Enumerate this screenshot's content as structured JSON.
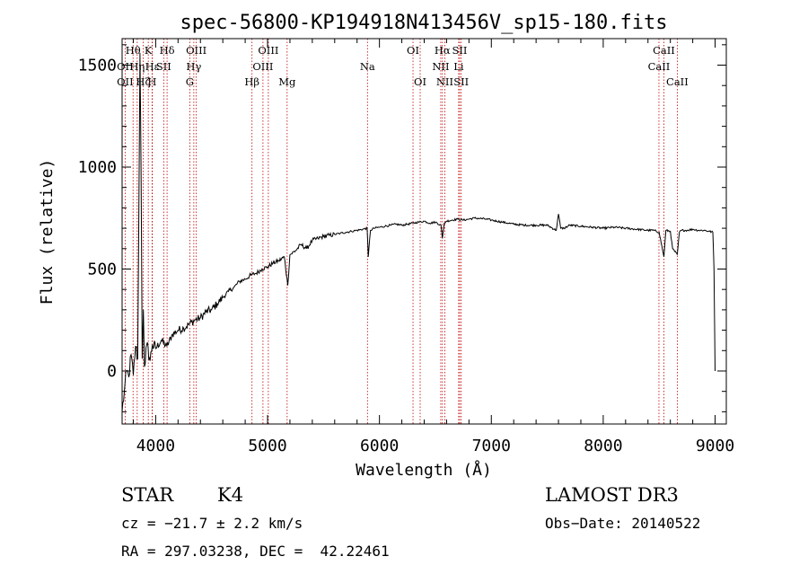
{
  "chart_data": {
    "type": "line",
    "title": "spec-56800-KP194918N413456V_sp15-180.fits",
    "xlabel": "Wavelength (Å)",
    "ylabel": "Flux (relative)",
    "xlim": [
      3700,
      9100
    ],
    "ylim": [
      -260,
      1630
    ],
    "xticks": [
      {
        "value": 4000,
        "label": "4000"
      },
      {
        "value": 5000,
        "label": "5000"
      },
      {
        "value": 6000,
        "label": "6000"
      },
      {
        "value": 7000,
        "label": "7000"
      },
      {
        "value": 8000,
        "label": "8000"
      },
      {
        "value": 9000,
        "label": "9000"
      }
    ],
    "yticks": [
      {
        "value": 0,
        "label": "0"
      },
      {
        "value": 500,
        "label": "500"
      },
      {
        "value": 1000,
        "label": "1000"
      },
      {
        "value": 1500,
        "label": "1500"
      }
    ],
    "series": [
      {
        "name": "spectrum",
        "x": [
          3700,
          3720,
          3740,
          3760,
          3780,
          3800,
          3820,
          3840,
          3860,
          3870,
          3880,
          3890,
          3900,
          3920,
          3950,
          3970,
          4000,
          4050,
          4100,
          4150,
          4200,
          4250,
          4300,
          4350,
          4400,
          4450,
          4500,
          4550,
          4600,
          4650,
          4700,
          4750,
          4800,
          4850,
          4900,
          4950,
          5000,
          5050,
          5100,
          5150,
          5180,
          5200,
          5250,
          5300,
          5350,
          5400,
          5450,
          5500,
          5550,
          5600,
          5650,
          5700,
          5750,
          5800,
          5850,
          5890,
          5900,
          5920,
          5950,
          6000,
          6050,
          6100,
          6150,
          6200,
          6250,
          6300,
          6350,
          6400,
          6450,
          6500,
          6550,
          6563,
          6580,
          6600,
          6650,
          6700,
          6750,
          6800,
          6850,
          6900,
          6950,
          7000,
          7050,
          7100,
          7150,
          7200,
          7300,
          7400,
          7500,
          7580,
          7600,
          7620,
          7650,
          7700,
          7800,
          7900,
          8000,
          8100,
          8200,
          8300,
          8400,
          8450,
          8500,
          8542,
          8560,
          8600,
          8620,
          8662,
          8680,
          8700,
          8750,
          8800,
          8850,
          8900,
          8950,
          8980,
          8990,
          9000
        ],
        "y": [
          -200,
          -100,
          0,
          -30,
          80,
          -20,
          120,
          60,
          1560,
          950,
          60,
          300,
          20,
          130,
          50,
          130,
          110,
          150,
          120,
          180,
          200,
          210,
          230,
          250,
          260,
          290,
          300,
          330,
          360,
          390,
          410,
          440,
          450,
          470,
          480,
          500,
          510,
          530,
          540,
          560,
          420,
          570,
          590,
          620,
          600,
          640,
          650,
          660,
          665,
          670,
          675,
          680,
          685,
          690,
          695,
          700,
          560,
          690,
          700,
          705,
          710,
          715,
          720,
          715,
          720,
          725,
          730,
          735,
          725,
          730,
          715,
          650,
          725,
          735,
          740,
          745,
          740,
          745,
          750,
          748,
          745,
          740,
          735,
          730,
          725,
          720,
          715,
          715,
          715,
          690,
          770,
          700,
          700,
          715,
          710,
          705,
          700,
          705,
          700,
          695,
          690,
          690,
          680,
          560,
          690,
          685,
          600,
          570,
          680,
          690,
          690,
          695,
          690,
          690,
          685,
          680,
          500,
          0
        ]
      }
    ],
    "emission_lines": [
      {
        "label": "Hθ",
        "wavelength": 3798,
        "row": 0
      },
      {
        "label": "K",
        "wavelength": 3934,
        "row": 0
      },
      {
        "label": "Hδ",
        "wavelength": 4102,
        "row": 0
      },
      {
        "label": "OIII",
        "wavelength": 4363,
        "row": 0
      },
      {
        "label": "OIII",
        "wavelength": 5007,
        "row": 0
      },
      {
        "label": "OI",
        "wavelength": 6300,
        "row": 0
      },
      {
        "label": "Hα",
        "wavelength": 6563,
        "row": 0
      },
      {
        "label": "SII",
        "wavelength": 6717,
        "row": 0
      },
      {
        "label": "CaII",
        "wavelength": 8542,
        "row": 0
      },
      {
        "label": "OII",
        "wavelength": 3727,
        "row": 1
      },
      {
        "label": "Hη",
        "wavelength": 3835,
        "row": 1
      },
      {
        "label": "Hε",
        "wavelength": 3970,
        "row": 1
      },
      {
        "label": "SII",
        "wavelength": 4072,
        "row": 1
      },
      {
        "label": "Hγ",
        "wavelength": 4341,
        "row": 1
      },
      {
        "label": "OIII",
        "wavelength": 4959,
        "row": 1
      },
      {
        "label": "Na",
        "wavelength": 5893,
        "row": 1
      },
      {
        "label": "NII",
        "wavelength": 6548,
        "row": 1
      },
      {
        "label": "Li",
        "wavelength": 6708,
        "row": 1
      },
      {
        "label": "CaII",
        "wavelength": 8498,
        "row": 1
      },
      {
        "label": "OII",
        "wavelength": 3727,
        "row": 2
      },
      {
        "label": "Hζ",
        "wavelength": 3889,
        "row": 2
      },
      {
        "label": "H",
        "wavelength": 3968,
        "row": 2
      },
      {
        "label": "G",
        "wavelength": 4305,
        "row": 2
      },
      {
        "label": "Hβ",
        "wavelength": 4861,
        "row": 2
      },
      {
        "label": "Mg",
        "wavelength": 5175,
        "row": 2
      },
      {
        "label": "OI",
        "wavelength": 6364,
        "row": 2
      },
      {
        "label": "NII",
        "wavelength": 6584,
        "row": 2
      },
      {
        "label": "SII",
        "wavelength": 6731,
        "row": 2
      },
      {
        "label": "CaII",
        "wavelength": 8662,
        "row": 2
      }
    ]
  },
  "info": {
    "class": "STAR",
    "subclass": "K4",
    "survey": "LAMOST DR3",
    "redshift": "cz = −21.7 ± 2.2 km/s",
    "obs_date": "Obs−Date: 20140522",
    "coords": "RA = 297.03238, DEC =  42.22461"
  },
  "colors": {
    "spectrum": "#000000",
    "line_marker": "#c00000",
    "axis": "#000000"
  }
}
